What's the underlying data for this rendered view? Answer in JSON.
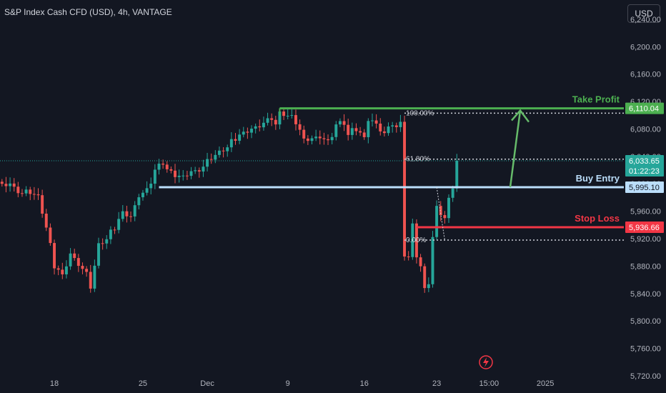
{
  "header": {
    "title": "S&P Index Cash CFD (USD), 4h, VANTAGE",
    "currency_button": "USD"
  },
  "colors": {
    "background": "#131722",
    "up": "#26a69a",
    "down": "#ef5350",
    "take_profit": "#4caf50",
    "stop_loss": "#f23645",
    "buy_entry": "#bbdefb",
    "arrow": "#66bb6a",
    "axis_text": "#b2b5be"
  },
  "chart_data": {
    "type": "candlestick",
    "y_axis": {
      "ticks": [
        "6,240.00",
        "6,200.00",
        "6,160.00",
        "6,120.00",
        "6,080.00",
        "6,040.00",
        "6,000.00",
        "5,960.00",
        "5,920.00",
        "5,880.00",
        "5,840.00",
        "5,800.00",
        "5,760.00",
        "5,720.00"
      ],
      "tick_values": [
        6240,
        6200,
        6160,
        6120,
        6080,
        6040,
        6000,
        5960,
        5920,
        5880,
        5840,
        5800,
        5760,
        5720
      ],
      "range": [
        5695,
        6268
      ]
    },
    "x_axis": {
      "ticks": [
        {
          "label": "18",
          "bar": 13
        },
        {
          "label": "25",
          "bar": 35
        },
        {
          "label": "Dec",
          "bar": 51
        },
        {
          "label": "9",
          "bar": 71
        },
        {
          "label": "16",
          "bar": 90
        },
        {
          "label": "23",
          "bar": 108
        },
        {
          "label": "15:00",
          "bar": 121
        },
        {
          "label": "2025",
          "bar": 135
        }
      ],
      "bars_total": 155
    },
    "close_path": [
      [
        0,
        6000
      ],
      [
        2,
        5998
      ],
      [
        5,
        5986
      ],
      [
        7,
        5990
      ],
      [
        9,
        5978
      ],
      [
        11,
        5935
      ],
      [
        13,
        5878
      ],
      [
        15,
        5868
      ],
      [
        17,
        5896
      ],
      [
        19,
        5884
      ],
      [
        21,
        5868
      ],
      [
        22,
        5852
      ],
      [
        24,
        5908
      ],
      [
        26,
        5918
      ],
      [
        28,
        5934
      ],
      [
        30,
        5960
      ],
      [
        32,
        5950
      ],
      [
        34,
        5984
      ],
      [
        36,
        5990
      ],
      [
        38,
        6020
      ],
      [
        40,
        6028
      ],
      [
        42,
        6012
      ],
      [
        44,
        6010
      ],
      [
        46,
        6014
      ],
      [
        48,
        6018
      ],
      [
        50,
        6025
      ],
      [
        52,
        6040
      ],
      [
        54,
        6043
      ],
      [
        56,
        6052
      ],
      [
        58,
        6064
      ],
      [
        60,
        6076
      ],
      [
        62,
        6078
      ],
      [
        64,
        6086
      ],
      [
        66,
        6092
      ],
      [
        67,
        6098
      ],
      [
        68,
        6086
      ],
      [
        69,
        6100
      ],
      [
        71,
        6098
      ],
      [
        73,
        6088
      ],
      [
        75,
        6066
      ],
      [
        77,
        6064
      ],
      [
        79,
        6070
      ],
      [
        81,
        6060
      ],
      [
        83,
        6086
      ],
      [
        85,
        6086
      ],
      [
        86,
        6070
      ],
      [
        88,
        6078
      ],
      [
        90,
        6068
      ],
      [
        91,
        6094
      ],
      [
        93,
        6086
      ],
      [
        95,
        6074
      ],
      [
        96,
        6080
      ],
      [
        97,
        6090
      ],
      [
        98,
        6082
      ],
      [
        99,
        6085
      ],
      [
        100,
        5894
      ],
      [
        101,
        5892
      ],
      [
        102,
        5935
      ],
      [
        103,
        5894
      ],
      [
        104,
        5878
      ],
      [
        105,
        5848
      ],
      [
        106,
        5856
      ],
      [
        107,
        5920
      ],
      [
        108,
        5966
      ],
      [
        109,
        5958
      ],
      [
        110,
        5950
      ],
      [
        111,
        5976
      ],
      [
        112,
        5998
      ],
      [
        113,
        6034
      ]
    ],
    "price_tags": [
      {
        "label": "6,110.04",
        "value": 6110.04,
        "color": "#4caf50"
      },
      {
        "label": "6,033.65",
        "value": 6033.65,
        "color": "#26a69a"
      },
      {
        "label": "01:22:23",
        "value": 6033.65,
        "color": "#26a69a"
      },
      {
        "label": "5,995.10",
        "value": 5995.1,
        "color": "#bbdefb"
      },
      {
        "label": "5,936.66",
        "value": 5936.66,
        "color": "#f23645"
      }
    ],
    "levels": [
      {
        "name": "take-profit",
        "label": "Take Profit",
        "value": 6110.04,
        "from_bar": 69,
        "color": "#4caf50"
      },
      {
        "name": "buy-entry",
        "label": "Buy Entry",
        "value": 5995.1,
        "from_bar": 39,
        "color": "#bbdefb"
      },
      {
        "name": "stop-loss",
        "label": "Stop Loss",
        "value": 5936.66,
        "from_bar": 103,
        "color": "#f23645"
      }
    ],
    "fibonacci": [
      {
        "label": "100.00%",
        "value": 6103
      },
      {
        "label": "61.80%",
        "value": 6036
      },
      {
        "label": "0.00%",
        "value": 5918
      }
    ],
    "current_price": 6033.65
  }
}
